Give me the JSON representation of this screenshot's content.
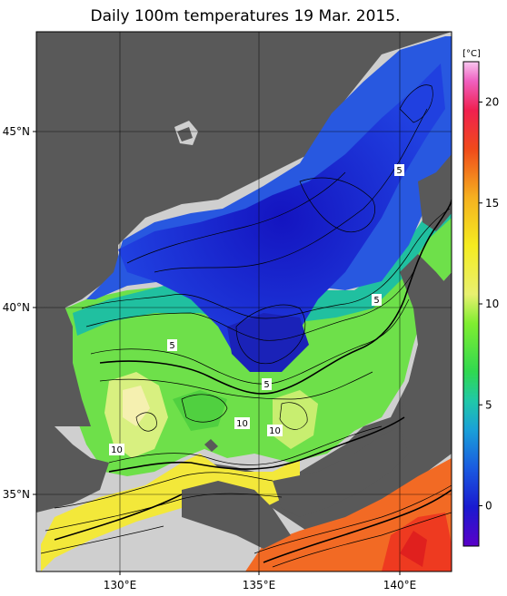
{
  "title": "Daily 100m temperatures 19 Mar. 2015.",
  "colorbar": {
    "unit": "[°C]",
    "ticks": [
      {
        "value": 20,
        "label": "20"
      },
      {
        "value": 15,
        "label": "15"
      },
      {
        "value": 10,
        "label": "10"
      },
      {
        "value": 5,
        "label": "5"
      },
      {
        "value": 0,
        "label": "0"
      }
    ],
    "range": [
      -2,
      22
    ]
  },
  "axes": {
    "lat_labels": [
      "45°N",
      "40°N",
      "35°N"
    ],
    "lon_labels": [
      "130°E",
      "135°E",
      "140°E"
    ]
  },
  "contour_labels": [
    "5",
    "5",
    "5",
    "5",
    "10",
    "10",
    "10"
  ],
  "colors": {
    "land": "#595959",
    "no_data": "#cfcfcf",
    "cold": "#1a33d6",
    "warm": "#f04a1a"
  }
}
